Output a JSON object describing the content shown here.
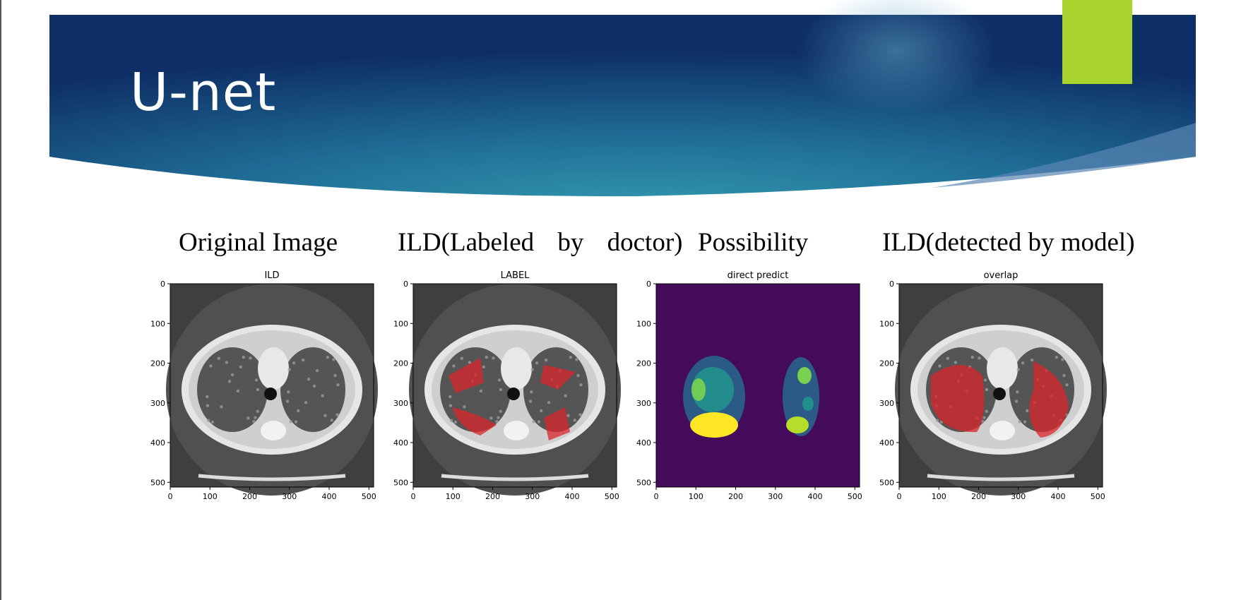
{
  "slide": {
    "title": "U-net",
    "accent_color": "#a8d32f",
    "banner_colors": [
      "#0e2f66",
      "#2d8fa8"
    ]
  },
  "panels": [
    {
      "heading": "Original Image",
      "plot_title": "ILD",
      "kind": "ct"
    },
    {
      "heading": "ILD(Labeled by doctor)",
      "plot_title": "LABEL",
      "kind": "label"
    },
    {
      "heading": "Possibility",
      "plot_title": "direct predict",
      "kind": "heatmap"
    },
    {
      "heading": "ILD(detected by model)",
      "plot_title": "overlap",
      "kind": "overlap"
    }
  ],
  "axes": {
    "y_ticks": [
      "0",
      "100",
      "200",
      "300",
      "400",
      "500"
    ],
    "x_ticks": [
      "0",
      "100",
      "200",
      "300",
      "400",
      "500"
    ]
  }
}
